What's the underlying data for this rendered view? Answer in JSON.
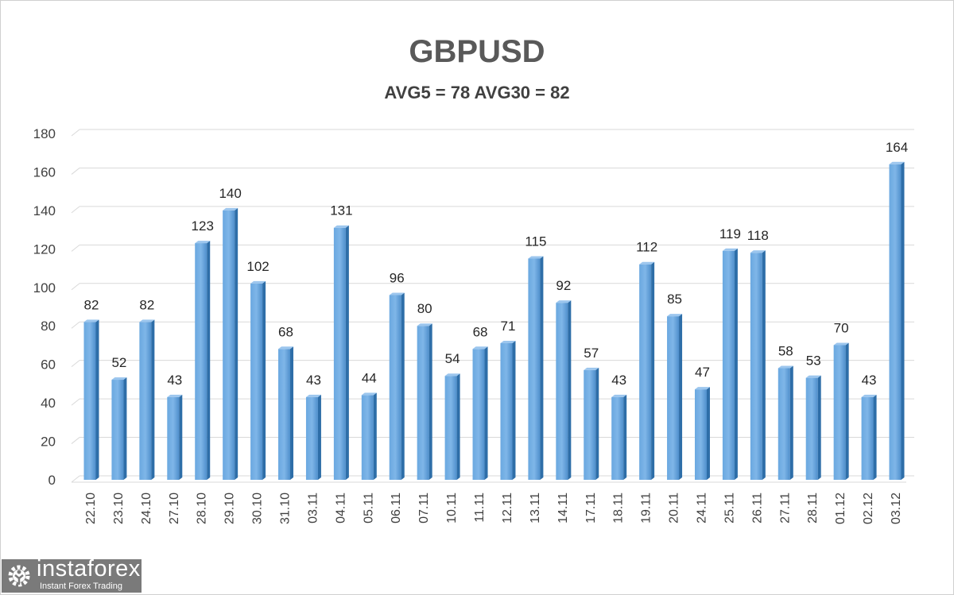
{
  "chart_data": {
    "type": "bar",
    "title": "GBPUSD",
    "subtitle": "AVG5 = 78 AVG30 = 82",
    "categories": [
      "22.10",
      "23.10",
      "24.10",
      "27.10",
      "28.10",
      "29.10",
      "30.10",
      "31.10",
      "03.11",
      "04.11",
      "05.11",
      "06.11",
      "07.11",
      "10.11",
      "11.11",
      "12.11",
      "13.11",
      "14.11",
      "17.11",
      "18.11",
      "19.11",
      "20.11",
      "24.11",
      "25.11",
      "26.11",
      "27.11",
      "28.11",
      "01.12",
      "02.12",
      "03.12"
    ],
    "values": [
      82,
      52,
      82,
      43,
      123,
      140,
      102,
      68,
      43,
      131,
      44,
      96,
      80,
      54,
      68,
      71,
      115,
      92,
      57,
      43,
      112,
      85,
      47,
      119,
      118,
      58,
      53,
      70,
      43,
      164
    ],
    "yticks": [
      0,
      20,
      40,
      60,
      80,
      100,
      120,
      140,
      160,
      180
    ],
    "ylim": [
      0,
      180
    ],
    "grid": true,
    "legend": "none",
    "bar_color": "#5b9bd5",
    "xlabel": "",
    "ylabel": ""
  },
  "logo": {
    "name": "instaforex",
    "tagline": "Instant Forex Trading"
  }
}
